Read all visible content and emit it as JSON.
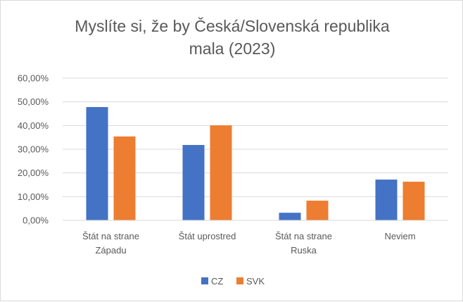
{
  "chart_data": {
    "type": "bar",
    "title_lines": [
      "Myslíte si, že by Česká/Slovenská republika",
      "mala (2023)"
    ],
    "categories": [
      [
        "Štát na strane",
        "Západu"
      ],
      [
        "Štát uprostred"
      ],
      [
        "Štát na strane",
        "Ruska"
      ],
      [
        "Neviem"
      ]
    ],
    "series": [
      {
        "name": "CZ",
        "color": "#4472C4",
        "values": [
          47.8,
          31.8,
          3.2,
          17.2
        ]
      },
      {
        "name": "SVK",
        "color": "#ED7D31",
        "values": [
          35.4,
          40.1,
          8.3,
          16.3
        ]
      }
    ],
    "ylim": [
      0,
      60
    ],
    "yticks": [
      "0,00%",
      "10,00%",
      "20,00%",
      "30,00%",
      "40,00%",
      "50,00%",
      "60,00%"
    ],
    "grid": true,
    "legend_position": "bottom"
  }
}
